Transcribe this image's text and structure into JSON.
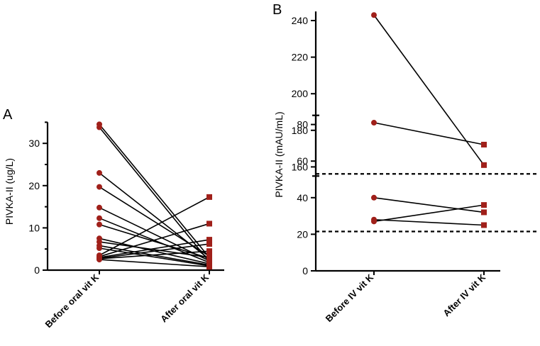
{
  "colors": {
    "before_marker": "#a0201a",
    "after_marker": "#a0201a",
    "axis": "#000000"
  },
  "chart_data": [
    {
      "panel_label": "A",
      "type": "line",
      "subtype": "paired before-after dot plot",
      "title": "",
      "ylabel": "PIVKA-II (ug/L)",
      "categories": [
        "Before oral vit K",
        "After oral vit K"
      ],
      "ylim": [
        0,
        35
      ],
      "yticks": [
        0,
        10,
        20,
        30
      ],
      "marker_shapes": {
        "before": "circle",
        "after": "square"
      },
      "pairs": [
        [
          34.5,
          3.0
        ],
        [
          33.8,
          2.0
        ],
        [
          23.0,
          2.6
        ],
        [
          19.7,
          3.3
        ],
        [
          14.8,
          2.2
        ],
        [
          12.3,
          1.8
        ],
        [
          10.8,
          2.8
        ],
        [
          7.5,
          1.5
        ],
        [
          6.7,
          3.0
        ],
        [
          5.8,
          1.2
        ],
        [
          5.2,
          1.0
        ],
        [
          3.5,
          17.3
        ],
        [
          3.2,
          11.0
        ],
        [
          3.0,
          7.2
        ],
        [
          2.8,
          6.2
        ],
        [
          2.7,
          4.5
        ],
        [
          2.5,
          0.8
        ]
      ]
    },
    {
      "panel_label": "B",
      "type": "line",
      "subtype": "paired before-after dot plot with broken y-axis",
      "title": "",
      "ylabel": "PIVKA-II (mAU/mL)",
      "categories": [
        "Before IV vit K",
        "After IV vit K"
      ],
      "y_segments": [
        {
          "ylim": [
            0,
            85
          ],
          "yticks": [
            0,
            20,
            40,
            60,
            80
          ]
        },
        {
          "ylim": [
            155,
            245
          ],
          "yticks": [
            160,
            180,
            200,
            220,
            240
          ]
        }
      ],
      "reference_lines": [
        21.5,
        53
      ],
      "marker_shapes": {
        "before": "circle",
        "after": "square"
      },
      "pairs": [
        [
          243,
          161
        ],
        [
          81,
          69
        ],
        [
          40,
          32
        ],
        [
          28,
          25
        ],
        [
          27,
          36
        ]
      ]
    }
  ]
}
